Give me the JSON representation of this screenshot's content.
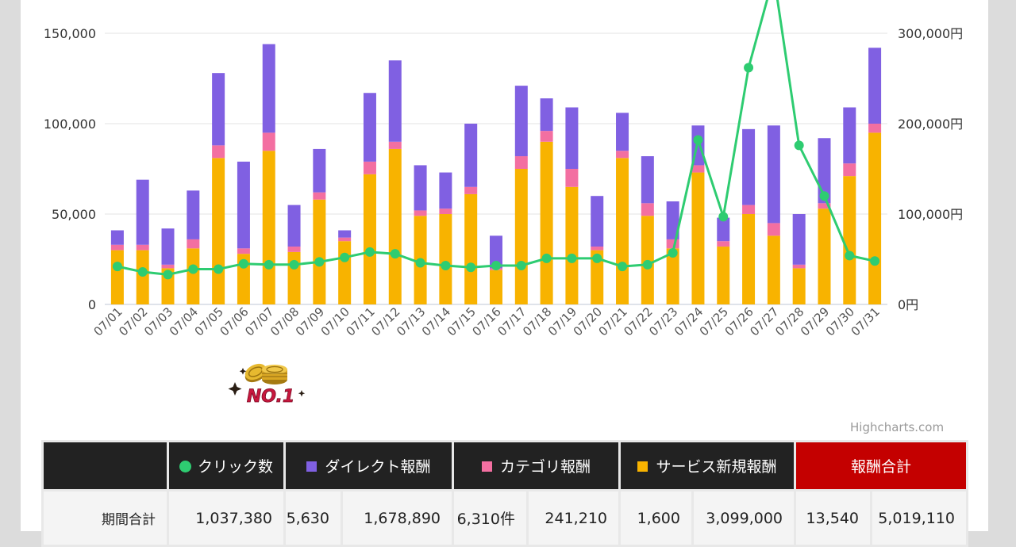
{
  "chart_data": {
    "type": "bar",
    "categories": [
      "07/01",
      "07/02",
      "07/03",
      "07/04",
      "07/05",
      "07/06",
      "07/07",
      "07/08",
      "07/09",
      "07/10",
      "07/11",
      "07/12",
      "07/13",
      "07/14",
      "07/15",
      "07/16",
      "07/17",
      "07/18",
      "07/19",
      "07/20",
      "07/21",
      "07/22",
      "07/23",
      "07/24",
      "07/25",
      "07/26",
      "07/27",
      "07/28",
      "07/29",
      "07/30",
      "07/31"
    ],
    "stacked": true,
    "series": [
      {
        "name": "サービス新規報酬",
        "axis": "right",
        "color": "#f8b300",
        "values": [
          60000,
          60000,
          40000,
          62000,
          162000,
          56000,
          170000,
          58000,
          116000,
          70000,
          144000,
          172000,
          98000,
          100000,
          122000,
          38000,
          150000,
          180000,
          130000,
          60000,
          162000,
          98000,
          62000,
          146000,
          64000,
          100000,
          76000,
          40000,
          106000,
          142000,
          190000
        ]
      },
      {
        "name": "カテゴリ報酬",
        "axis": "right",
        "color": "#f36fa1",
        "values": [
          6000,
          6000,
          4000,
          10000,
          14000,
          6000,
          20000,
          6000,
          8000,
          4000,
          14000,
          8000,
          6000,
          6000,
          8000,
          2000,
          14000,
          12000,
          20000,
          4000,
          8000,
          14000,
          10000,
          8000,
          6000,
          10000,
          14000,
          4000,
          6000,
          14000,
          10000
        ]
      },
      {
        "name": "ダイレクト報酬",
        "axis": "right",
        "color": "#8060e2",
        "values": [
          16000,
          72000,
          40000,
          54000,
          80000,
          96000,
          98000,
          46000,
          48000,
          8000,
          76000,
          90000,
          50000,
          40000,
          70000,
          36000,
          78000,
          36000,
          68000,
          56000,
          42000,
          52000,
          42000,
          44000,
          26000,
          84000,
          108000,
          56000,
          72000,
          62000,
          84000
        ]
      },
      {
        "name": "クリック数",
        "axis": "left",
        "type": "line",
        "color": "#2ecc71",
        "values": [
          21000,
          18000,
          16500,
          19500,
          19500,
          22500,
          22000,
          22000,
          23500,
          26000,
          29000,
          28000,
          23000,
          21500,
          20500,
          21500,
          21500,
          25500,
          25500,
          25500,
          21000,
          22000,
          28500,
          91000,
          48500,
          131000,
          182000,
          88000,
          60000,
          27000,
          24000
        ]
      }
    ],
    "y_left": {
      "ticks": [
        "0",
        "50,000",
        "100,000",
        "150,000"
      ],
      "min": 0,
      "max": 150000,
      "display_max": 170000
    },
    "y_right": {
      "ticks": [
        "0円",
        "100,000円",
        "200,000円",
        "300,000円"
      ],
      "min": 0,
      "max": 300000
    },
    "grid": true
  },
  "credit": "Highcharts.com",
  "badge": "NO.1",
  "table": {
    "headers": {
      "clicks": "クリック数",
      "direct": "ダイレクト報酬",
      "category": "カテゴリ報酬",
      "service": "サービス新規報酬",
      "total": "報酬合計"
    },
    "row": {
      "label": "期間合計",
      "clicks": "1,037,380",
      "direct_count": "5,630",
      "direct_amount": "1,678,890",
      "category_count": "6,310件",
      "category_amount": "241,210",
      "service_count": "1,600",
      "service_amount": "3,099,000",
      "total_count": "13,540",
      "total_amount": "5,019,110"
    },
    "colors": {
      "clicks": "#2ecc71",
      "direct": "#8060e2",
      "category": "#f36fa1",
      "service": "#f8b300",
      "total_bg": "#c40000"
    }
  }
}
